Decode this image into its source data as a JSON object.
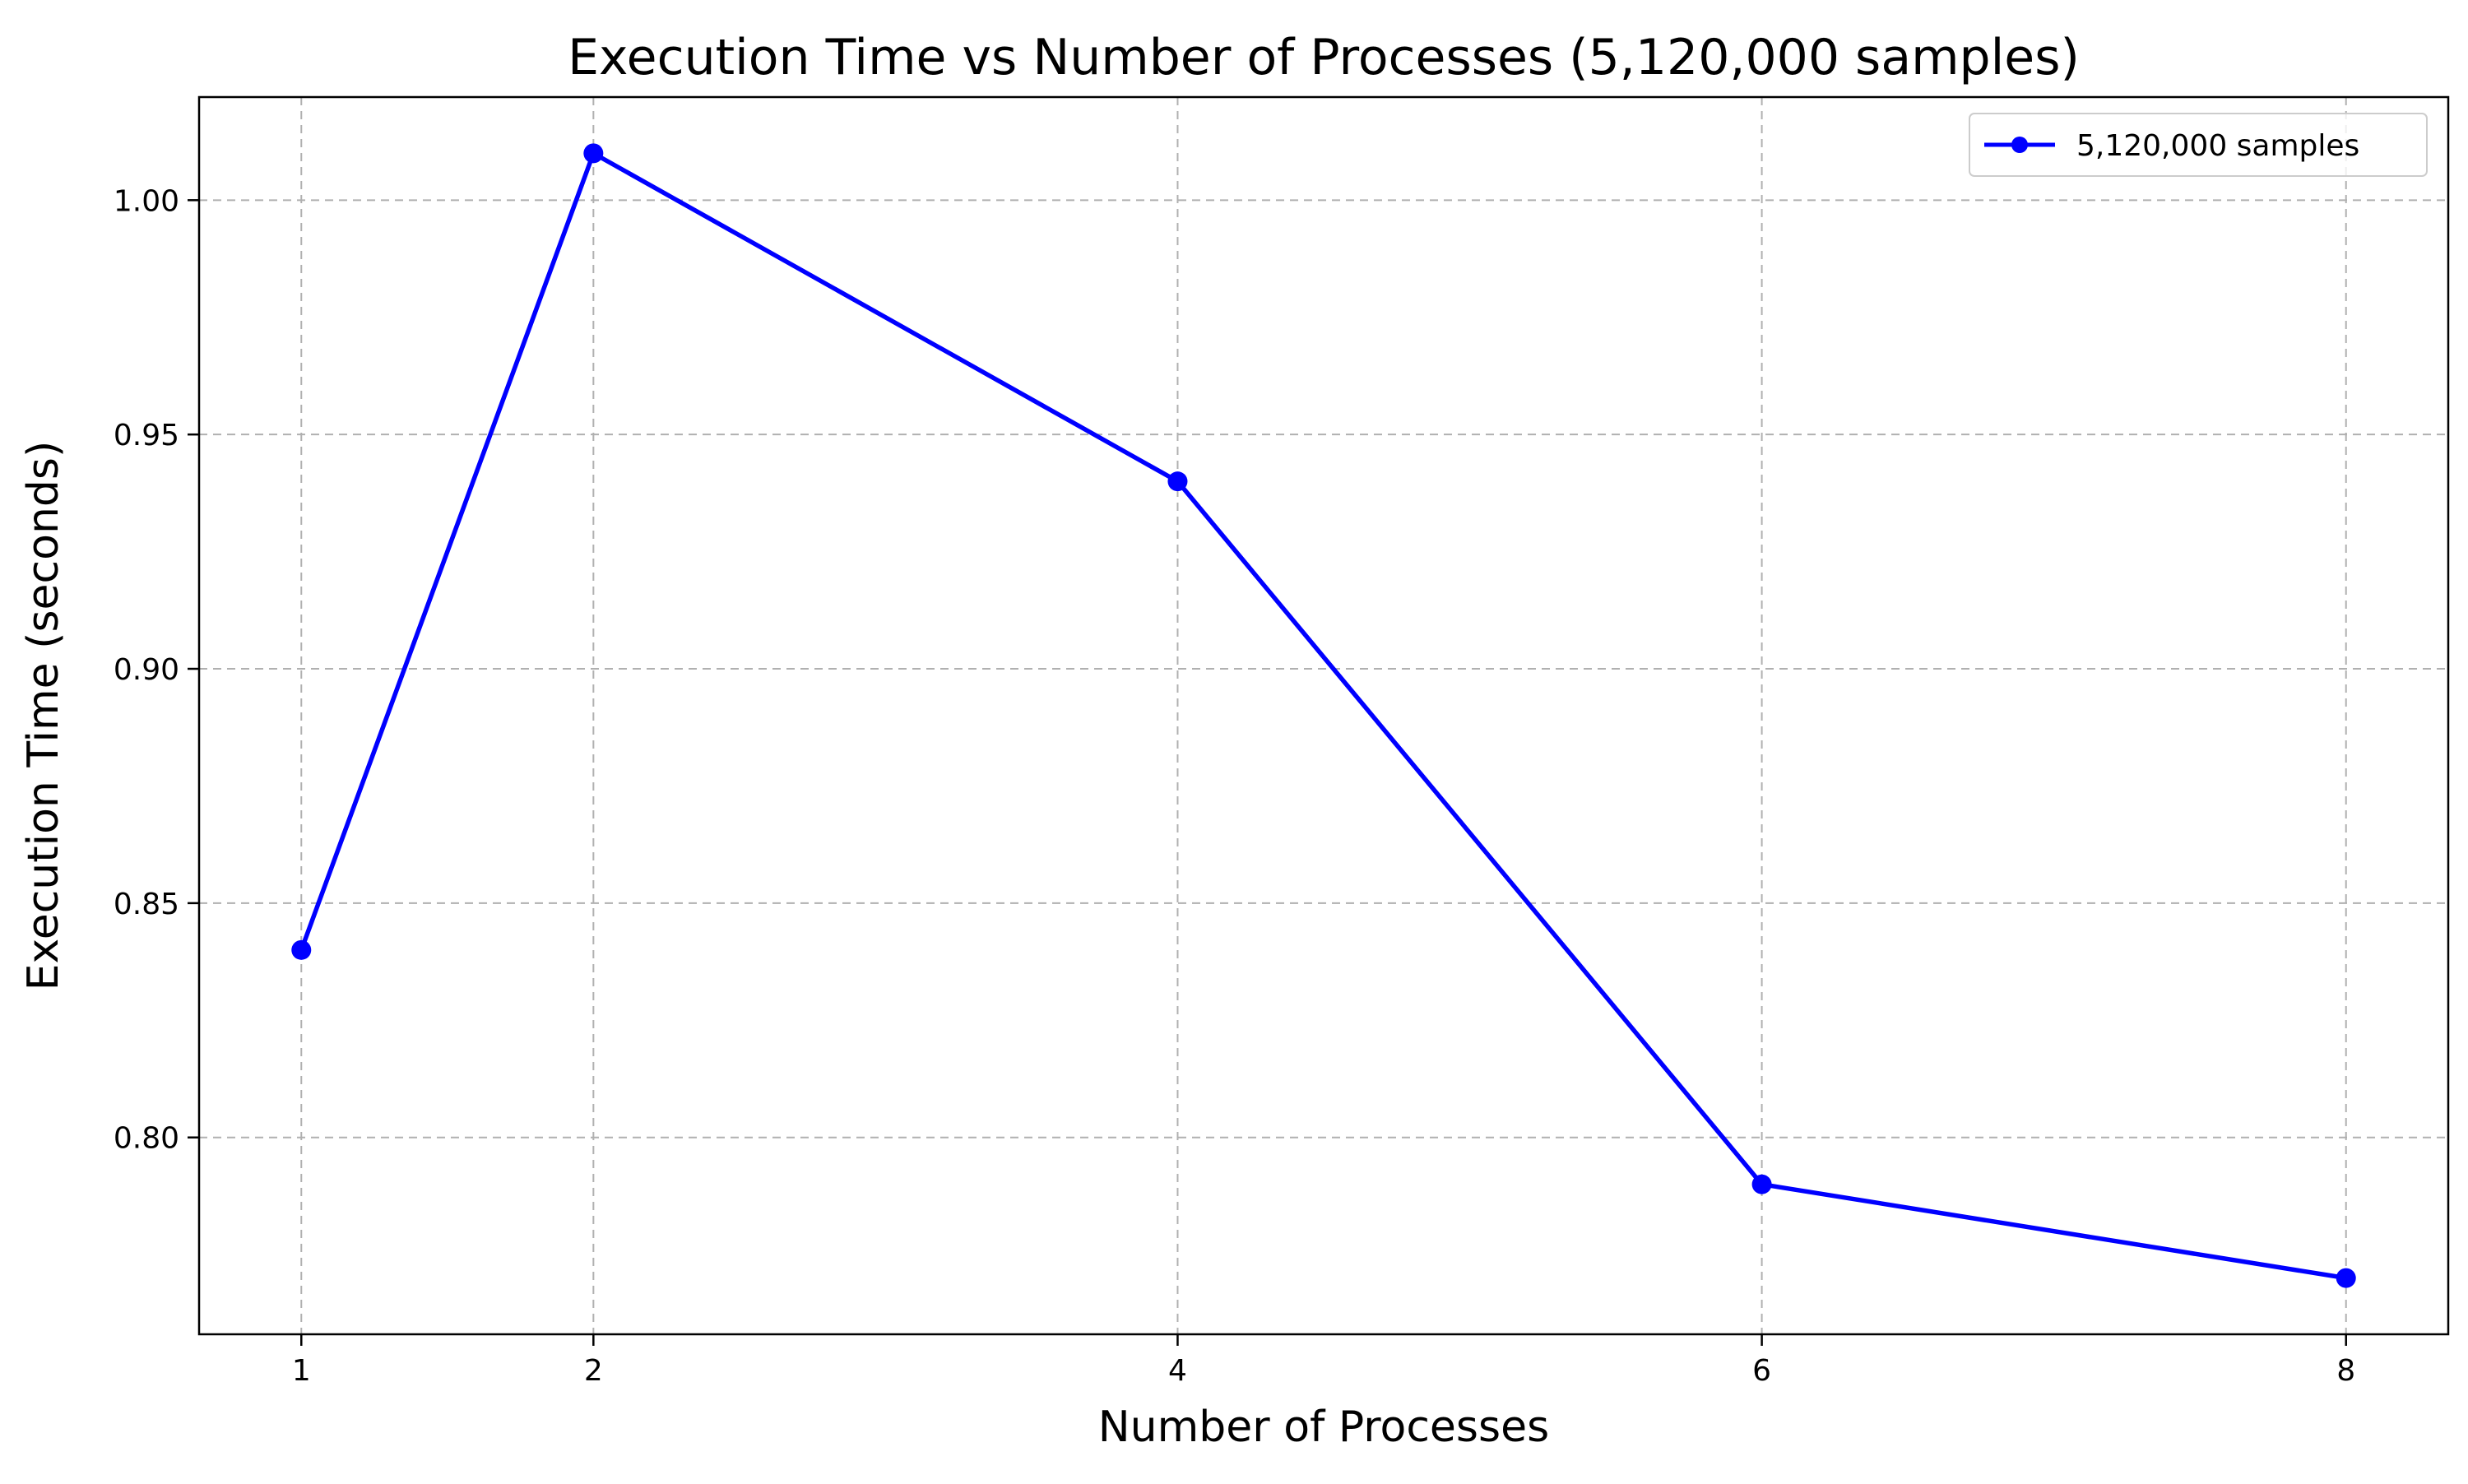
{
  "chart_data": {
    "type": "line",
    "title": "Execution Time vs Number of Processes (5,120,000 samples)",
    "xlabel": "Number of Processes",
    "ylabel": "Execution Time (seconds)",
    "x": [
      1,
      2,
      4,
      6,
      8
    ],
    "series": [
      {
        "name": "5,120,000 samples",
        "values": [
          0.84,
          1.01,
          0.94,
          0.79,
          0.77
        ],
        "color": "#0000ff",
        "marker": "circle"
      }
    ],
    "xticks": [
      1,
      2,
      4,
      6,
      8
    ],
    "xtick_labels": [
      "1",
      "2",
      "4",
      "6",
      "8"
    ],
    "yticks": [
      0.8,
      0.85,
      0.9,
      0.95,
      1.0
    ],
    "ytick_labels": [
      "0.80",
      "0.85",
      "0.90",
      "0.95",
      "1.00"
    ],
    "xlim": [
      0.65,
      8.35
    ],
    "ylim": [
      0.758,
      1.022
    ],
    "grid": true,
    "grid_style": "dashed",
    "legend_position": "top-right"
  }
}
